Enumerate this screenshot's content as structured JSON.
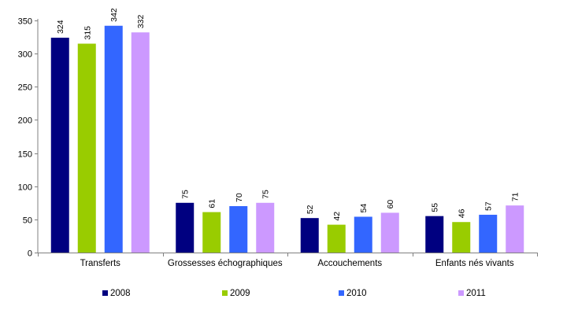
{
  "chart_data": {
    "type": "bar",
    "title": "",
    "xlabel": "",
    "ylabel": "",
    "categories": [
      "Transferts",
      "Grossesses échographiques",
      "Accouchements",
      "Enfants nés vivants"
    ],
    "series": [
      {
        "name": "2008",
        "color": "#000080",
        "values": [
          324,
          75,
          52,
          55
        ]
      },
      {
        "name": "2009",
        "color": "#99cc00",
        "values": [
          315,
          61,
          42,
          46
        ]
      },
      {
        "name": "2010",
        "color": "#3366ff",
        "values": [
          342,
          70,
          54,
          57
        ]
      },
      {
        "name": "2011",
        "color": "#cc99ff",
        "values": [
          332,
          75,
          60,
          71
        ]
      }
    ],
    "ylim": [
      0,
      350
    ],
    "yticks": [
      0,
      50,
      100,
      150,
      200,
      250,
      300,
      350
    ],
    "grid": false,
    "legend_position": "bottom",
    "data_labels": true
  }
}
